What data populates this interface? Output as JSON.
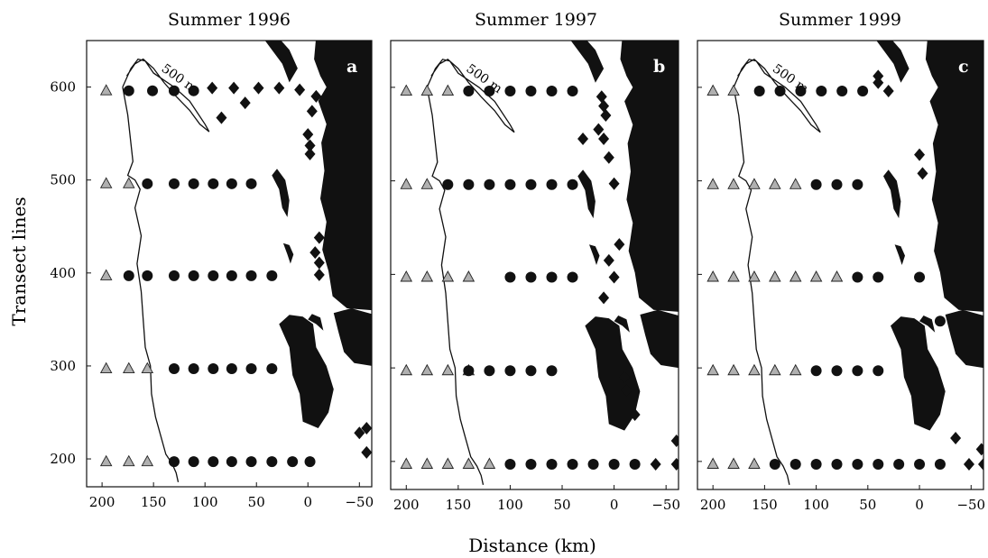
{
  "figure": {
    "ylabel": "Transect lines",
    "xlabel": "Distance (km)",
    "contour_label": "500 m"
  },
  "chart_data": [
    {
      "type": "scatter",
      "title": "Summer 1996",
      "panel_label": "a",
      "xlim": [
        215,
        -62
      ],
      "ylim": [
        170,
        650
      ],
      "xticks": [
        200,
        150,
        100,
        50,
        0,
        -50
      ],
      "yticks": [
        200,
        300,
        400,
        500,
        600
      ],
      "triangles": [
        [
          196,
          596
        ],
        [
          196,
          496
        ],
        [
          196,
          397
        ],
        [
          196,
          297
        ],
        [
          174,
          297
        ],
        [
          156,
          297
        ],
        [
          196,
          197
        ],
        [
          174,
          197
        ],
        [
          156,
          197
        ],
        [
          174,
          496
        ]
      ],
      "circles": [
        [
          174,
          596
        ],
        [
          151,
          596
        ],
        [
          130,
          596
        ],
        [
          111,
          596
        ],
        [
          156,
          496
        ],
        [
          130,
          496
        ],
        [
          111,
          496
        ],
        [
          92,
          496
        ],
        [
          74,
          496
        ],
        [
          55,
          496
        ],
        [
          174,
          397
        ],
        [
          156,
          397
        ],
        [
          130,
          397
        ],
        [
          111,
          397
        ],
        [
          92,
          397
        ],
        [
          74,
          397
        ],
        [
          55,
          397
        ],
        [
          35,
          397
        ],
        [
          130,
          297
        ],
        [
          111,
          297
        ],
        [
          92,
          297
        ],
        [
          74,
          297
        ],
        [
          55,
          297
        ],
        [
          35,
          297
        ],
        [
          130,
          197
        ],
        [
          111,
          197
        ],
        [
          92,
          197
        ],
        [
          74,
          197
        ],
        [
          55,
          197
        ],
        [
          35,
          197
        ],
        [
          15,
          197
        ],
        [
          -2,
          197
        ]
      ],
      "diamonds": [
        [
          93,
          599
        ],
        [
          72,
          599
        ],
        [
          48,
          599
        ],
        [
          28,
          599
        ],
        [
          61,
          583
        ],
        [
          84,
          567
        ],
        [
          8,
          597
        ],
        [
          -8,
          590
        ],
        [
          -4,
          574
        ],
        [
          0,
          549
        ],
        [
          -2,
          537
        ],
        [
          -2,
          528
        ],
        [
          -11,
          438
        ],
        [
          -7,
          422
        ],
        [
          -11,
          411
        ],
        [
          -11,
          398
        ],
        [
          -50,
          228
        ],
        [
          -57,
          233
        ],
        [
          -57,
          207
        ]
      ]
    },
    {
      "type": "scatter",
      "title": "Summer 1997",
      "panel_label": "b",
      "xlim": [
        215,
        -62
      ],
      "ylim": [
        170,
        650
      ],
      "xticks": [
        200,
        150,
        100,
        50,
        0,
        -50
      ],
      "yticks": [
        200,
        300,
        400,
        500,
        600
      ],
      "triangles": [
        [
          200,
          596
        ],
        [
          180,
          596
        ],
        [
          160,
          596
        ],
        [
          200,
          496
        ],
        [
          180,
          496
        ],
        [
          200,
          397
        ],
        [
          180,
          397
        ],
        [
          160,
          397
        ],
        [
          140,
          397
        ],
        [
          200,
          297
        ],
        [
          180,
          297
        ],
        [
          160,
          297
        ],
        [
          140,
          297
        ],
        [
          200,
          197
        ],
        [
          180,
          197
        ],
        [
          160,
          197
        ],
        [
          140,
          197
        ],
        [
          120,
          197
        ]
      ],
      "circles": [
        [
          160,
          496
        ],
        [
          140,
          496
        ],
        [
          120,
          496
        ],
        [
          100,
          496
        ],
        [
          80,
          496
        ],
        [
          60,
          496
        ],
        [
          40,
          496
        ],
        [
          140,
          596
        ],
        [
          120,
          596
        ],
        [
          100,
          596
        ],
        [
          80,
          596
        ],
        [
          60,
          596
        ],
        [
          40,
          596
        ],
        [
          100,
          397
        ],
        [
          80,
          397
        ],
        [
          60,
          397
        ],
        [
          40,
          397
        ],
        [
          140,
          297
        ],
        [
          120,
          297
        ],
        [
          100,
          297
        ],
        [
          80,
          297
        ],
        [
          60,
          297
        ],
        [
          100,
          197
        ],
        [
          80,
          197
        ],
        [
          60,
          197
        ],
        [
          40,
          197
        ],
        [
          20,
          197
        ],
        [
          0,
          197
        ],
        [
          -20,
          197
        ]
      ],
      "diamonds": [
        [
          12,
          590
        ],
        [
          10,
          580
        ],
        [
          8,
          570
        ],
        [
          15,
          555
        ],
        [
          30,
          545
        ],
        [
          10,
          545
        ],
        [
          5,
          525
        ],
        [
          0,
          497
        ],
        [
          -5,
          432
        ],
        [
          5,
          415
        ],
        [
          0,
          397
        ],
        [
          10,
          375
        ],
        [
          -10,
          290
        ],
        [
          -12,
          276
        ],
        [
          -20,
          250
        ],
        [
          -60,
          222
        ],
        [
          -40,
          197
        ],
        [
          -60,
          197
        ]
      ]
    },
    {
      "type": "scatter",
      "title": "Summer 1999",
      "panel_label": "c",
      "xlim": [
        215,
        -62
      ],
      "ylim": [
        170,
        650
      ],
      "xticks": [
        200,
        150,
        100,
        50,
        0,
        -50
      ],
      "yticks": [
        200,
        300,
        400,
        500,
        600
      ],
      "triangles": [
        [
          200,
          596
        ],
        [
          180,
          596
        ],
        [
          200,
          496
        ],
        [
          180,
          496
        ],
        [
          160,
          496
        ],
        [
          140,
          496
        ],
        [
          120,
          496
        ],
        [
          200,
          397
        ],
        [
          180,
          397
        ],
        [
          160,
          397
        ],
        [
          140,
          397
        ],
        [
          120,
          397
        ],
        [
          100,
          397
        ],
        [
          80,
          397
        ],
        [
          200,
          297
        ],
        [
          180,
          297
        ],
        [
          160,
          297
        ],
        [
          140,
          297
        ],
        [
          120,
          297
        ],
        [
          200,
          197
        ],
        [
          180,
          197
        ],
        [
          160,
          197
        ]
      ],
      "circles": [
        [
          155,
          596
        ],
        [
          135,
          596
        ],
        [
          115,
          596
        ],
        [
          95,
          596
        ],
        [
          75,
          596
        ],
        [
          55,
          596
        ],
        [
          100,
          496
        ],
        [
          80,
          496
        ],
        [
          60,
          496
        ],
        [
          60,
          397
        ],
        [
          40,
          397
        ],
        [
          0,
          397
        ],
        [
          -20,
          350
        ],
        [
          100,
          297
        ],
        [
          80,
          297
        ],
        [
          60,
          297
        ],
        [
          40,
          297
        ],
        [
          140,
          197
        ],
        [
          120,
          197
        ],
        [
          100,
          197
        ],
        [
          80,
          197
        ],
        [
          60,
          197
        ],
        [
          40,
          197
        ],
        [
          20,
          197
        ],
        [
          0,
          197
        ],
        [
          -20,
          197
        ]
      ],
      "diamonds": [
        [
          0,
          528
        ],
        [
          -3,
          508
        ],
        [
          30,
          596
        ],
        [
          40,
          612
        ],
        [
          40,
          605
        ],
        [
          -35,
          225
        ],
        [
          -60,
          213
        ],
        [
          -48,
          197
        ],
        [
          -62,
          197
        ]
      ]
    }
  ]
}
